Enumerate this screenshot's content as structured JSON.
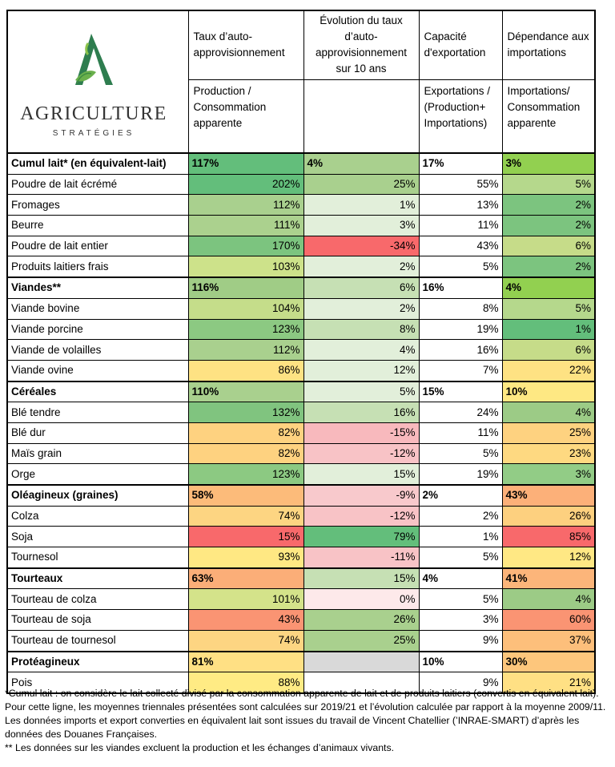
{
  "logo": {
    "brand": "AGRICULTURE",
    "tagline": "STRATÉGIES"
  },
  "table": {
    "headers": [
      "Taux d’auto-approvisionnement",
      "Évolution du taux d’auto-approvisionnement sur 10 ans",
      "Capacité d'exportation",
      "Dépendance aux importations"
    ],
    "subheaders": [
      "Production / Consommation apparente",
      "Exportations / (Production+ Importations)",
      "Importations/ Consommation apparente"
    ],
    "groups": [
      {
        "rows": [
          [
            "Cumul lait* (en équivalent-lait)",
            "117%",
            "4%",
            "17%",
            "3%"
          ],
          [
            "Poudre de lait écrémé",
            "202%",
            "25%",
            "55%",
            "5%"
          ],
          [
            "Fromages",
            "112%",
            "1%",
            "13%",
            "2%"
          ],
          [
            "Beurre",
            "111%",
            "3%",
            "11%",
            "2%"
          ],
          [
            "Poudre de lait entier",
            "170%",
            "-34%",
            "43%",
            "6%"
          ],
          [
            "Produits laitiers frais",
            "103%",
            "2%",
            "5%",
            "2%"
          ]
        ]
      },
      {
        "rows": [
          [
            "Viandes**",
            "116%",
            "6%",
            "16%",
            "4%"
          ],
          [
            "Viande bovine",
            "104%",
            "2%",
            "8%",
            "5%"
          ],
          [
            "Viande porcine",
            "123%",
            "8%",
            "19%",
            "1%"
          ],
          [
            "Viande de volailles",
            "112%",
            "4%",
            "16%",
            "6%"
          ],
          [
            "Viande ovine",
            "86%",
            "12%",
            "7%",
            "22%"
          ]
        ]
      },
      {
        "rows": [
          [
            "Céréales",
            "110%",
            "5%",
            "15%",
            "10%"
          ],
          [
            "Blé tendre",
            "132%",
            "16%",
            "24%",
            "4%"
          ],
          [
            "Blé dur",
            "82%",
            "-15%",
            "11%",
            "25%"
          ],
          [
            "Maïs grain",
            "82%",
            "-12%",
            "5%",
            "23%"
          ],
          [
            "Orge",
            "123%",
            "15%",
            "19%",
            "3%"
          ]
        ]
      },
      {
        "rows": [
          [
            "Oléagineux (graines)",
            "58%",
            "-9%",
            "2%",
            "43%"
          ],
          [
            "Colza",
            "74%",
            "-12%",
            "2%",
            "26%"
          ],
          [
            "Soja",
            "15%",
            "79%",
            "1%",
            "85%"
          ],
          [
            "Tournesol",
            "93%",
            "-11%",
            "5%",
            "12%"
          ]
        ]
      },
      {
        "rows": [
          [
            "Tourteaux",
            "63%",
            "15%",
            "4%",
            "41%"
          ],
          [
            "Tourteau de colza",
            "101%",
            "0%",
            "5%",
            "4%"
          ],
          [
            "Tourteau de soja",
            "43%",
            "26%",
            "3%",
            "60%"
          ],
          [
            "Tourteau de tournesol",
            "74%",
            "25%",
            "9%",
            "37%"
          ]
        ]
      },
      {
        "rows": [
          [
            "Protéagineux",
            "81%",
            null,
            "10%",
            "30%"
          ],
          [
            "Pois",
            "88%",
            null,
            "9%",
            "21%"
          ]
        ]
      }
    ]
  },
  "footnotes": [
    "*Cumul lait : on considère le lait collecté divisé par la consommation apparente de lait et de produits laitiers (convertis en équivalent lait). Pour cette ligne, les moyennes triennales présentées sont calculées sur 2019/21 et l’évolution calculée par rapport à la moyenne 2009/11. Les données imports et export converties en équivalent lait sont issues du travail de Vincent Chatellier (’INRAE-SMART) d’après les données des Douanes Françaises.",
    "** Les données sur les viandes excluent la production et les échanges d’animaux vivants."
  ]
}
